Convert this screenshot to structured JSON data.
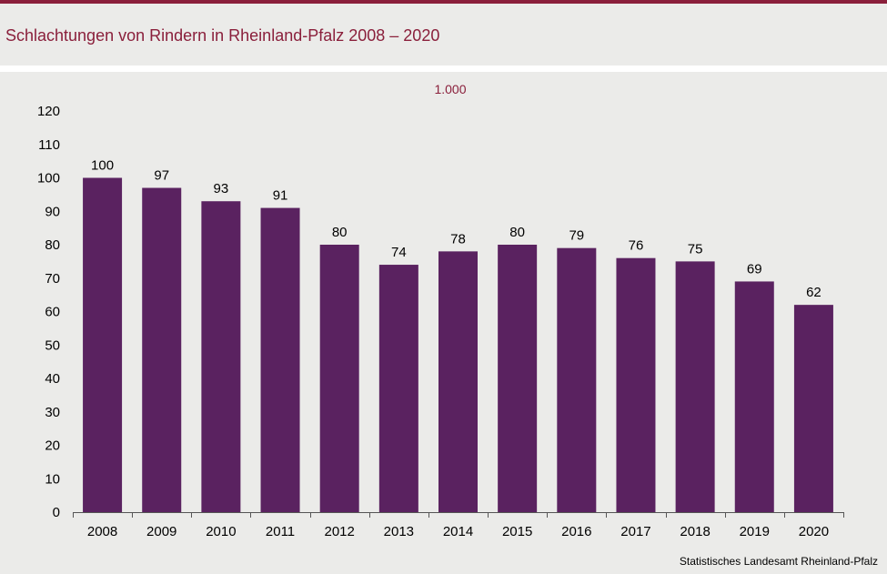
{
  "header": {
    "title": "Schlachtungen von Rindern in Rheinland-Pfalz 2008 – 2020"
  },
  "colors": {
    "accent": "#8a1f3b",
    "bar": "#5a2260",
    "background": "#ebebe9"
  },
  "chart_data": {
    "type": "bar",
    "unit_label": "1.000",
    "categories": [
      "2008",
      "2009",
      "2010",
      "2011",
      "2012",
      "2013",
      "2014",
      "2015",
      "2016",
      "2017",
      "2018",
      "2019",
      "2020"
    ],
    "values": [
      100,
      97,
      93,
      91,
      80,
      74,
      78,
      80,
      79,
      76,
      75,
      69,
      62
    ],
    "ylim": [
      0,
      120
    ],
    "yticks": [
      0,
      10,
      20,
      30,
      40,
      50,
      60,
      70,
      80,
      90,
      100,
      110,
      120
    ],
    "grid": false,
    "data_labels": true
  },
  "footer": {
    "source": "Statistisches Landesamt  Rheinland-Pfalz"
  }
}
